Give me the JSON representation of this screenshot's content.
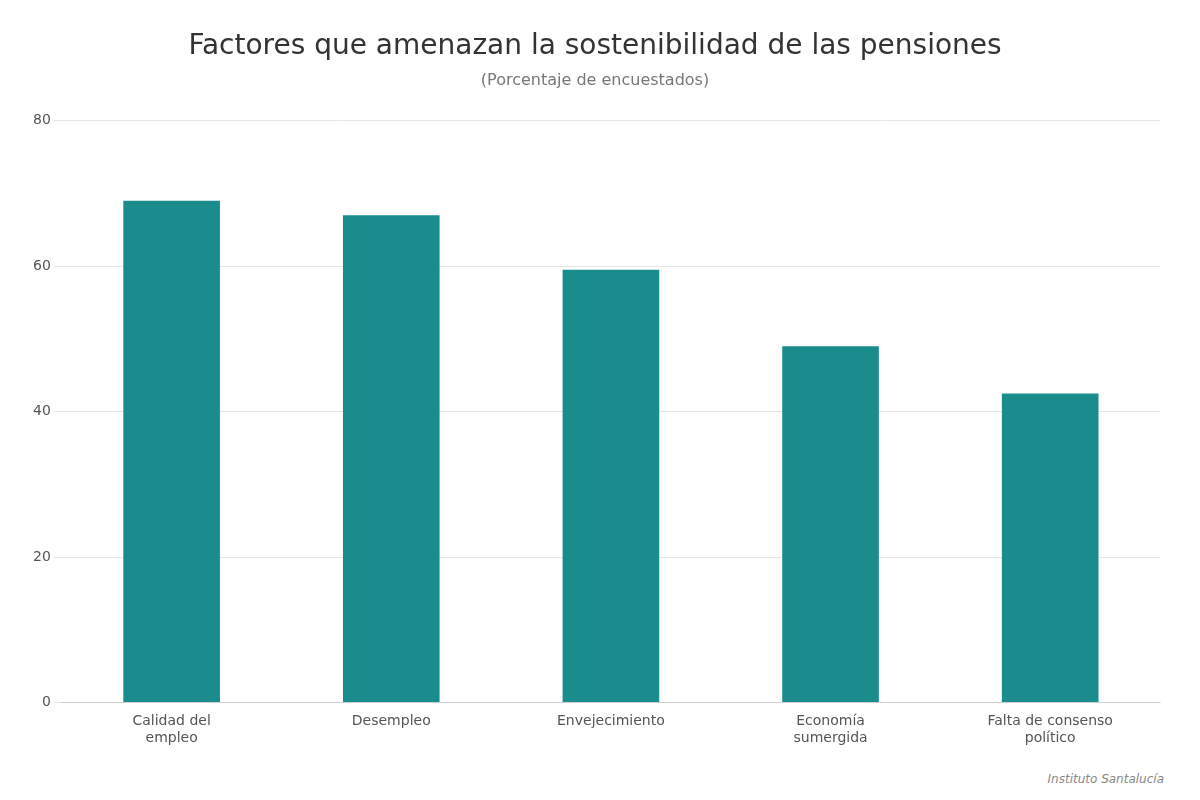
{
  "chart_data": {
    "type": "bar",
    "title": "Factores que amenazan la sostenibilidad de las pensiones",
    "subtitle": "(Porcentaje de encuestados)",
    "annotations": [
      "Instituto Santalucía"
    ],
    "categories": [
      "Calidad del\nempleo",
      "Desempleo",
      "Envejecimiento",
      "Economía\nsumergida",
      "Falta de consenso\npolítico"
    ],
    "values": [
      69,
      67,
      59.5,
      49,
      42.5
    ],
    "color": "#1a8c8c",
    "ylim": [
      0,
      80
    ],
    "yticks": [
      0,
      20,
      40,
      60,
      80
    ],
    "grid": true
  }
}
